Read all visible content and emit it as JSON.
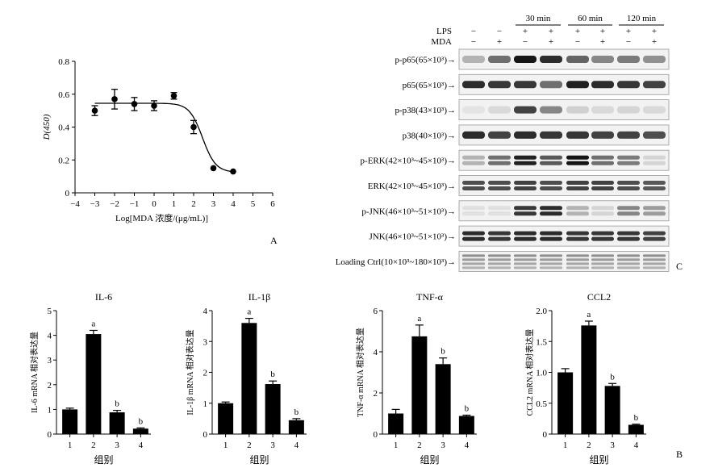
{
  "panel_labels": {
    "a": "A",
    "b": "B",
    "c": "C"
  },
  "blot": {
    "time_headers": [
      "30 min",
      "60 min",
      "120 min"
    ],
    "treat_labels": {
      "lps": "LPS",
      "mda": "MDA"
    },
    "lps_signs": [
      "−",
      "−",
      "+",
      "+",
      "+",
      "+",
      "+",
      "+"
    ],
    "mda_signs": [
      "−",
      "+",
      "−",
      "+",
      "−",
      "+",
      "−",
      "+"
    ],
    "rows": [
      {
        "label": "p-p65(65×10³)→",
        "intensities": [
          0.25,
          0.55,
          0.95,
          0.85,
          0.6,
          0.45,
          0.5,
          0.4
        ]
      },
      {
        "label": "p65(65×10³)→",
        "intensities": [
          0.85,
          0.8,
          0.8,
          0.55,
          0.9,
          0.85,
          0.8,
          0.75
        ]
      },
      {
        "label": "p-p38(43×10³)→",
        "intensities": [
          0.03,
          0.08,
          0.75,
          0.45,
          0.12,
          0.08,
          0.1,
          0.08
        ]
      },
      {
        "label": "p38(40×10³)→",
        "intensities": [
          0.85,
          0.75,
          0.85,
          0.8,
          0.8,
          0.75,
          0.75,
          0.7
        ]
      },
      {
        "label": "p-ERK(42×10³~45×10³)→",
        "intensities": [
          0.25,
          0.55,
          0.9,
          0.65,
          0.95,
          0.55,
          0.5,
          0.1
        ]
      },
      {
        "label": "ERK(42×10³~45×10³)→",
        "intensities": [
          0.7,
          0.7,
          0.75,
          0.7,
          0.75,
          0.75,
          0.7,
          0.65
        ]
      },
      {
        "label": "p-JNK(46×10³~51×10³)→",
        "intensities": [
          0.05,
          0.05,
          0.8,
          0.85,
          0.25,
          0.1,
          0.45,
          0.35
        ]
      },
      {
        "label": "JNK(46×10³~51×10³)→",
        "intensities": [
          0.85,
          0.8,
          0.85,
          0.85,
          0.8,
          0.8,
          0.8,
          0.75
        ]
      },
      {
        "label": "Loading Ctrl(10×10³~180×10³)→",
        "intensities": [
          0.55,
          0.55,
          0.55,
          0.55,
          0.55,
          0.55,
          0.55,
          0.55
        ]
      }
    ]
  },
  "chart_data": [
    {
      "type": "scatter",
      "panel": "A",
      "xlabel": "Log[MDA 浓度/(μg/mL)]",
      "ylabel": "D(450)",
      "xlim": [
        -4,
        6
      ],
      "ylim": [
        0,
        0.8
      ],
      "xticks": [
        "−4",
        "−3",
        "−2",
        "−1",
        "0",
        "1",
        "2",
        "3",
        "4",
        "5",
        "6"
      ],
      "yticks": [
        "0",
        "0.2",
        "0.4",
        "0.6",
        "0.8"
      ],
      "points": [
        {
          "x": -3,
          "y": 0.5,
          "err": 0.03
        },
        {
          "x": -2,
          "y": 0.57,
          "err": 0.06
        },
        {
          "x": -1,
          "y": 0.54,
          "err": 0.04
        },
        {
          "x": 0,
          "y": 0.53,
          "err": 0.03
        },
        {
          "x": 1,
          "y": 0.59,
          "err": 0.02
        },
        {
          "x": 2,
          "y": 0.4,
          "err": 0.04
        },
        {
          "x": 3,
          "y": 0.15,
          "err": 0.005
        },
        {
          "x": 4,
          "y": 0.13,
          "err": 0.005
        }
      ],
      "fit": {
        "top": 0.545,
        "bottom": 0.125,
        "logIC50": 2.45,
        "hill": -1.3
      }
    },
    {
      "type": "bar",
      "panel": "B",
      "title": "IL-6",
      "ylabel": "IL-6 mRNA 相对表达量",
      "xlabel": "组别",
      "categories": [
        "1",
        "2",
        "3",
        "4"
      ],
      "values": [
        1.0,
        4.05,
        0.88,
        0.22
      ],
      "errors": [
        0.05,
        0.15,
        0.08,
        0.03
      ],
      "letters": [
        "",
        "a",
        "b",
        "b"
      ],
      "ylim": [
        0,
        5
      ],
      "yticks": [
        "0",
        "1",
        "2",
        "3",
        "4",
        "5"
      ]
    },
    {
      "type": "bar",
      "panel": "B",
      "title": "IL-1β",
      "ylabel": "IL-1β mRNA 相对表达量",
      "xlabel": "组别",
      "categories": [
        "1",
        "2",
        "3",
        "4"
      ],
      "values": [
        1.0,
        3.6,
        1.62,
        0.45
      ],
      "errors": [
        0.04,
        0.15,
        0.1,
        0.05
      ],
      "letters": [
        "",
        "a",
        "b",
        "b"
      ],
      "ylim": [
        0,
        4
      ],
      "yticks": [
        "0",
        "1",
        "2",
        "3",
        "4"
      ]
    },
    {
      "type": "bar",
      "panel": "B",
      "title": "TNF-α",
      "ylabel": "TNF-α mRNA 相对表达量",
      "xlabel": "组别",
      "categories": [
        "1",
        "2",
        "3",
        "4"
      ],
      "values": [
        1.0,
        4.75,
        3.4,
        0.88
      ],
      "errors": [
        0.2,
        0.55,
        0.3,
        0.04
      ],
      "letters": [
        "",
        "a",
        "b",
        "b"
      ],
      "ylim": [
        0,
        6
      ],
      "yticks": [
        "0",
        "2",
        "4",
        "6"
      ]
    },
    {
      "type": "bar",
      "panel": "B",
      "title": "CCL2",
      "ylabel": "CCL2 mRNA 相对表达量",
      "xlabel": "组别",
      "categories": [
        "1",
        "2",
        "3",
        "4"
      ],
      "values": [
        1.0,
        1.76,
        0.78,
        0.15
      ],
      "errors": [
        0.06,
        0.07,
        0.04,
        0.01
      ],
      "letters": [
        "",
        "a",
        "b",
        "b"
      ],
      "ylim": [
        0,
        2.0
      ],
      "yticks": [
        "0",
        "0.5",
        "1.0",
        "1.5",
        "2.0"
      ]
    }
  ]
}
